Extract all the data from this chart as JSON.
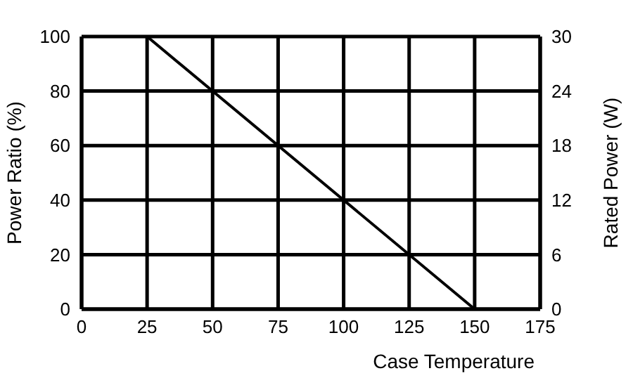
{
  "chart_data": {
    "type": "line",
    "xlabel": "Case Temperature",
    "ylabel": "Power Ratio (%)",
    "y2label": "Rated Power (W)",
    "x": [
      0,
      25,
      150
    ],
    "series": [
      {
        "color": "#000000",
        "values": [
          100,
          100,
          0
        ]
      }
    ],
    "xlim": [
      0,
      175
    ],
    "xticks": [
      0,
      25,
      50,
      75,
      100,
      125,
      150,
      175
    ],
    "ylim": [
      0,
      100
    ],
    "yticks": [
      0,
      20,
      40,
      60,
      80,
      100
    ],
    "y2lim": [
      0,
      30
    ],
    "y2ticks": [
      0,
      6,
      12,
      18,
      24,
      30
    ],
    "grid": true,
    "legend": false,
    "marker": "none",
    "line_style": "solid"
  }
}
